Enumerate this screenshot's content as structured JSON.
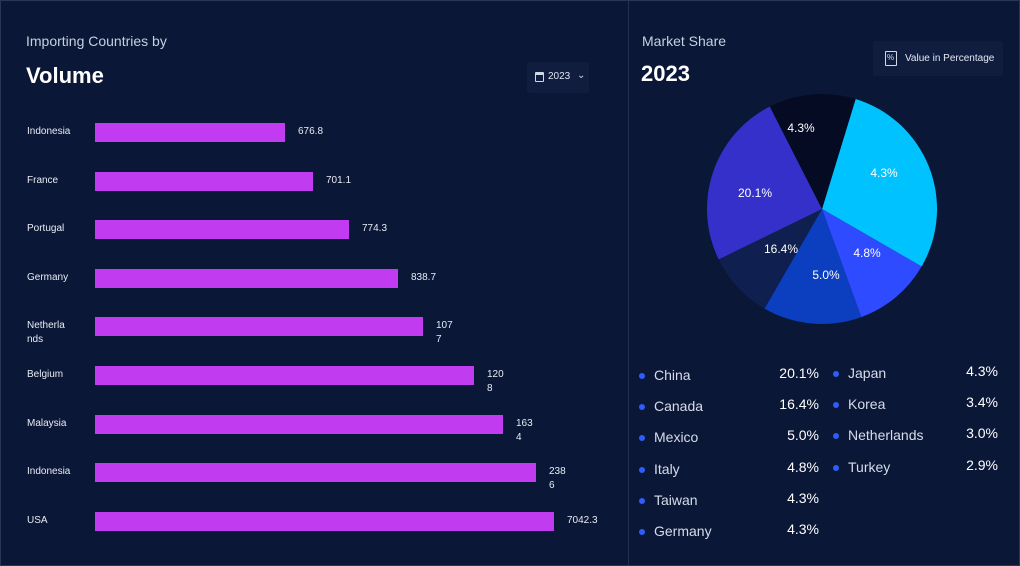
{
  "volume": {
    "subtitle": "Importing Countries by",
    "title": "Volume",
    "year": "2023"
  },
  "share": {
    "subtitle": "Market Share",
    "year": "2023",
    "toggle_label": "Value in Percentage"
  },
  "chart_data": [
    {
      "type": "bar",
      "orientation": "horizontal",
      "categories": [
        "Indonesia",
        "France",
        "Portugal",
        "Germany",
        "Netherlands",
        "Belgium",
        "Malaysia",
        "Indonesia",
        "USA"
      ],
      "category_labels": [
        "Indonesia",
        "France",
        "Portugal",
        "Germany",
        "Netherla\nnds",
        "Belgium",
        "Malaysia",
        "Indonesia",
        "USA"
      ],
      "values": [
        676.8,
        701.1,
        774.3,
        838.7,
        1077,
        1208,
        1634,
        2386,
        7042.3
      ],
      "value_labels": [
        "676.8",
        "701.1",
        "774.3",
        "838.7",
        "1077",
        "1208",
        "1634",
        "2386",
        "7042.3"
      ],
      "color": "#c13cf0"
    },
    {
      "type": "pie",
      "slices": [
        {
          "label": "4.3%",
          "value": 4.3,
          "color": "#00c2ff"
        },
        {
          "label": "4.8%",
          "value": 4.8,
          "color": "#2f4bff"
        },
        {
          "label": "5.0%",
          "value": 5.0,
          "color": "#0b3fbf"
        },
        {
          "label": "16.4%",
          "value": 16.4,
          "color": "#0f1f4f"
        },
        {
          "label": "20.1%",
          "value": 20.1,
          "color": "#3530c9"
        },
        {
          "label": "4.3%",
          "value": 4.3,
          "color": "#050b22"
        }
      ],
      "legend": [
        {
          "name": "China",
          "value": "20.1%"
        },
        {
          "name": "Canada",
          "value": "16.4%"
        },
        {
          "name": "Mexico",
          "value": "5.0%"
        },
        {
          "name": "Italy",
          "value": "4.8%"
        },
        {
          "name": "Taiwan",
          "value": "4.3%"
        },
        {
          "name": "Germany",
          "value": "4.3%"
        },
        {
          "name": "Japan",
          "value": "4.3%"
        },
        {
          "name": "Korea",
          "value": "3.4%"
        },
        {
          "name": "Netherlands",
          "value": "3.0%"
        },
        {
          "name": "Turkey",
          "value": "2.9%"
        }
      ]
    }
  ]
}
